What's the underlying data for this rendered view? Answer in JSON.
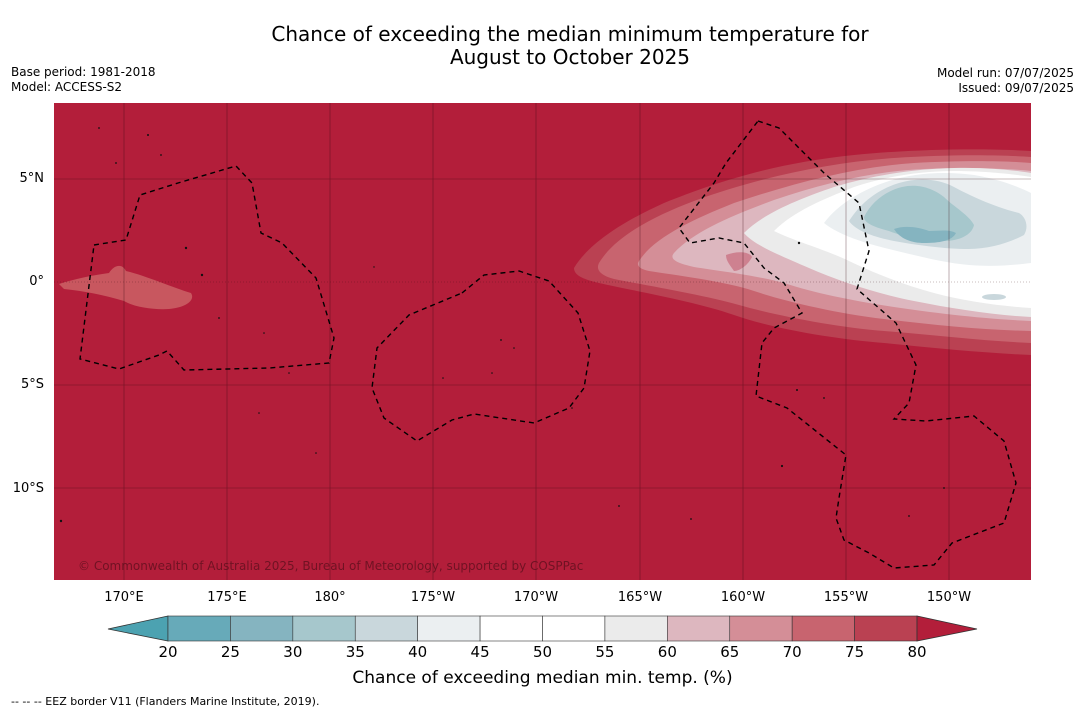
{
  "title": {
    "line1": "Chance of exceeding the median minimum temperature for",
    "line2": "August to October 2025"
  },
  "meta": {
    "base_period": "Base period: 1981-2018",
    "model": "Model: ACCESS-S2",
    "model_run": "Model run: 07/07/2025",
    "issued": "Issued: 09/07/2025"
  },
  "map": {
    "background_color": "#b31e3a",
    "credit": "© Commonwealth of Australia 2025, Bureau of Meteorology, supported by COSPPac",
    "lat_labels": [
      "5°N",
      "0°",
      "5°S",
      "10°S"
    ],
    "lon_labels": [
      "170°E",
      "175°E",
      "180°",
      "175°W",
      "170°W",
      "165°W",
      "160°W",
      "155°W",
      "150°W"
    ]
  },
  "colorbar": {
    "ticks": [
      "20",
      "25",
      "30",
      "35",
      "40",
      "45",
      "50",
      "55",
      "60",
      "65",
      "70",
      "75",
      "80"
    ],
    "colors": [
      "#67aab9",
      "#85b4c0",
      "#a6c7cc",
      "#c9d7dc",
      "#ebeff1",
      "#ffffff",
      "#ffffff",
      "#ebebeb",
      "#ddb7bf",
      "#d48e97",
      "#c8646f",
      "#ba4152"
    ],
    "under_color": "#4ca2b1",
    "over_color": "#b31e3a",
    "label": "Chance of exceeding median min. temp. (%)"
  },
  "footer": "--  --  -- EEZ border V11 (Flanders Marine Institute, 2019)."
}
